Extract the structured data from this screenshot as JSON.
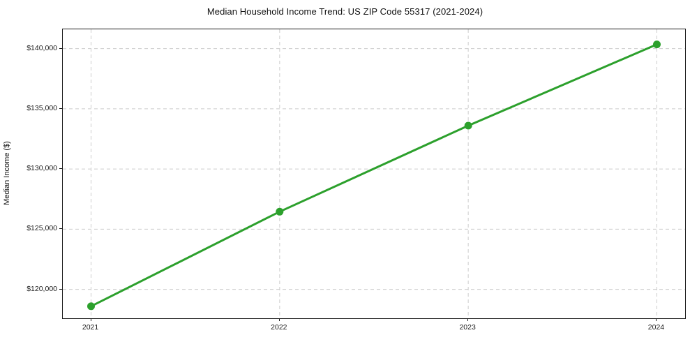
{
  "chart_data": {
    "type": "line",
    "title": "Median Household Income Trend: US ZIP Code 55317 (2021-2024)",
    "xlabel": "",
    "ylabel": "Median Income ($)",
    "series": [
      {
        "name": "Median Household Income",
        "x": [
          2021,
          2022,
          2023,
          2024
        ],
        "values": [
          118600,
          126450,
          133600,
          140350
        ]
      }
    ],
    "x_ticks": [
      2021,
      2022,
      2023,
      2024
    ],
    "x_tick_labels": [
      "2021",
      "2022",
      "2023",
      "2024"
    ],
    "y_ticks": [
      120000,
      125000,
      130000,
      135000,
      140000
    ],
    "y_tick_labels": [
      "$120,000",
      "$125,000",
      "$130,000",
      "$135,000",
      "$140,000"
    ],
    "xlim": [
      2020.85,
      2024.15
    ],
    "ylim": [
      117600,
      141600
    ],
    "grid": true,
    "grid_style": "dashed",
    "legend": false,
    "line_color": "#2ca02c",
    "marker": "circle",
    "marker_size": 5.5,
    "line_width": 3,
    "grid_color": "#cccccc",
    "spine_color": "#1a1a1a",
    "background_color": "#ffffff"
  }
}
